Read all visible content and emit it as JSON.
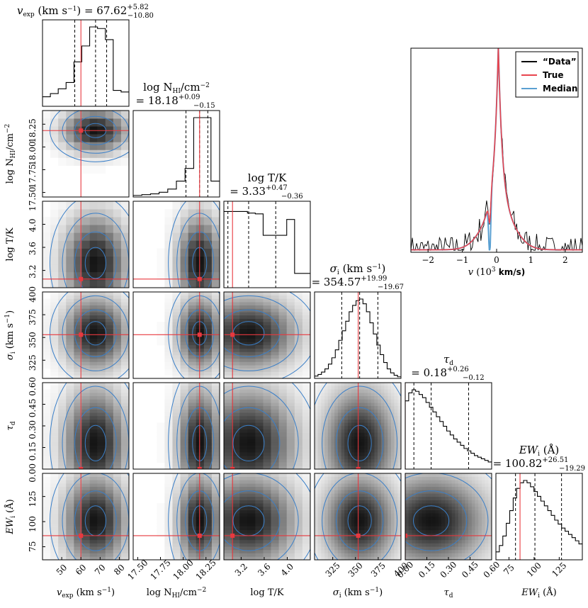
{
  "chart_data": {
    "type": "corner",
    "parameters": [
      {
        "key": "vexp",
        "label": "v_exp (km s^-1)",
        "title": "v_exp (km s^-1) = 67.62 +5.82 -10.80",
        "median": 67.62,
        "err_plus": 5.82,
        "err_minus": 10.8,
        "truth": 60.0,
        "quantiles": [
          56.8,
          67.62,
          73.4
        ],
        "range": [
          40,
          85
        ],
        "ticks": [
          50,
          60,
          70,
          80
        ],
        "hist": [
          0.12,
          0.16,
          0.22,
          0.3,
          0.56,
          0.76,
          1.0,
          0.98,
          0.84,
          0.2,
          0.18
        ]
      },
      {
        "key": "nhi",
        "label": "log N_HI/cm^-2",
        "title": "log N_HI/cm^-2 = 18.18 +0.09 -0.15",
        "median": 18.18,
        "err_plus": 0.09,
        "err_minus": 0.15,
        "truth": 18.18,
        "quantiles": [
          18.03,
          18.18,
          18.27
        ],
        "range": [
          17.45,
          18.4
        ],
        "ticks": [
          17.5,
          17.75,
          18.0,
          18.25
        ],
        "hist": [
          0.02,
          0.03,
          0.04,
          0.06,
          0.1,
          0.2,
          0.36,
          1.0,
          1.0,
          0.2
        ]
      },
      {
        "key": "logt",
        "label": "log T/K",
        "title": "log T/K = 3.33 +0.47 -0.36",
        "median": 3.33,
        "err_plus": 0.47,
        "err_minus": 0.36,
        "truth": 3.05,
        "quantiles": [
          2.97,
          3.33,
          3.8
        ],
        "range": [
          2.9,
          4.4
        ],
        "ticks": [
          3.2,
          3.6,
          4.0
        ],
        "hist": [
          0.96,
          0.96,
          0.96,
          0.94,
          0.93,
          0.66,
          0.66,
          0.66,
          0.86,
          0.18,
          0.18
        ]
      },
      {
        "key": "sigma",
        "label": "sigma_i (km s^-1)",
        "title": "sigma_i (km s^-1) = 354.57 +19.99 -19.67",
        "median": 354.57,
        "err_plus": 19.99,
        "err_minus": 19.67,
        "truth": 353.0,
        "quantiles": [
          334.9,
          354.57,
          374.6
        ],
        "range": [
          305,
          400
        ],
        "ticks": [
          325,
          350,
          375,
          400
        ],
        "hist": [
          0.03,
          0.05,
          0.08,
          0.12,
          0.18,
          0.26,
          0.36,
          0.48,
          0.6,
          0.72,
          0.84,
          0.92,
          0.98,
          1.0,
          0.94,
          0.84,
          0.7,
          0.56,
          0.42,
          0.3,
          0.2,
          0.12,
          0.07,
          0.04,
          0.02
        ]
      },
      {
        "key": "taud",
        "label": "tau_d",
        "title": "tau_d = 0.18 +0.26 -0.12",
        "median": 0.18,
        "err_plus": 0.26,
        "err_minus": 0.12,
        "truth": 0.0,
        "quantiles": [
          0.06,
          0.18,
          0.44
        ],
        "range": [
          0.0,
          0.6
        ],
        "ticks": [
          0.0,
          0.15,
          0.3,
          0.45,
          0.6
        ],
        "hist": [
          0.86,
          0.96,
          1.0,
          0.98,
          0.94,
          0.9,
          0.84,
          0.78,
          0.72,
          0.66,
          0.6,
          0.54,
          0.48,
          0.43,
          0.38,
          0.34,
          0.3,
          0.26,
          0.23,
          0.2,
          0.17,
          0.15,
          0.13,
          0.11,
          0.09
        ]
      },
      {
        "key": "ew",
        "label": "EW_i (Å)",
        "title": "EW_i (Å) = 100.82 +26.51 -19.29",
        "median": 100.82,
        "err_plus": 26.51,
        "err_minus": 19.29,
        "truth": 86.0,
        "quantiles": [
          81.5,
          100.82,
          127.3
        ],
        "range": [
          62,
          148
        ],
        "ticks": [
          75,
          100,
          125
        ],
        "hist": [
          0.1,
          0.18,
          0.3,
          0.46,
          0.62,
          0.78,
          0.9,
          0.97,
          1.0,
          0.97,
          0.92,
          0.86,
          0.8,
          0.74,
          0.68,
          0.62,
          0.56,
          0.5,
          0.45,
          0.4,
          0.36,
          0.32,
          0.28,
          0.24,
          0.2
        ]
      }
    ],
    "titles_display": [
      {
        "sym": "v",
        "sub": "exp",
        "unit": " (km s",
        "sup_unit": "−1",
        ",end": ")",
        "val": "= 67.62",
        "plus": "+5.82",
        "minus": "−10.80"
      }
    ],
    "axis_text": {
      "vexp": {
        "main": "v",
        "sub": "exp",
        "rest": " (km s",
        "sup": "−1",
        "end": ")"
      },
      "nhi": {
        "main": "log N",
        "sub": "HI",
        "rest": "/cm",
        "sup": "−2",
        "end": ""
      },
      "logt": {
        "main": "log T/K",
        "sub": "",
        "rest": "",
        "sup": "",
        "end": ""
      },
      "sigma": {
        "main": "σ",
        "sub": "i",
        "rest": " (km s",
        "sup": "−1",
        "end": ")"
      },
      "taud": {
        "main": "τ",
        "sub": "d",
        "rest": "",
        "sup": "",
        "end": ""
      },
      "ew": {
        "main": "EW",
        "sub": "i",
        "rest": " (Å)",
        "sup": "",
        "end": ""
      }
    },
    "title_values": {
      "vexp": {
        "val": " = 67.62",
        "plus": "+5.82",
        "minus": "−10.80"
      },
      "nhi": {
        "val": "= 18.18",
        "plus": "+0.09",
        "minus": "−0.15"
      },
      "logt": {
        "val": "= 3.33",
        "plus": "+0.47",
        "minus": "−0.36"
      },
      "sigma": {
        "val": "= 354.57",
        "plus": "+19.99",
        "minus": "−19.67"
      },
      "taud": {
        "val": "= 0.18",
        "plus": "+0.26",
        "minus": "−0.12"
      },
      "ew": {
        "val": "= 100.82",
        "plus": "+26.51",
        "minus": "−19.29"
      }
    },
    "tick_labels": {
      "vexp": [
        "50",
        "60",
        "70",
        "80"
      ],
      "nhi": [
        "17.50",
        "17.75",
        "18.00",
        "18.25"
      ],
      "logt": [
        "3.2",
        "3.6",
        "4.0"
      ],
      "sigma": [
        "325",
        "350",
        "375",
        "400"
      ],
      "taud": [
        "0.00",
        "0.15",
        "0.30",
        "0.45",
        "0.60"
      ],
      "ew": [
        "75",
        "100",
        "125"
      ]
    },
    "inset": {
      "type": "line",
      "xlabel": "v (10^3 km/s)",
      "xlabel_parts": {
        "v": "v",
        "unit": " (10",
        "sup": "3",
        "end": " km/s)"
      },
      "xlim": [
        -2.5,
        2.5
      ],
      "ylim": [
        0,
        1.0
      ],
      "xticks": [
        -2,
        -1,
        0,
        1,
        2
      ],
      "xtick_labels": [
        "−2",
        "−1",
        "0",
        "1",
        "2"
      ],
      "legend": [
        {
          "name": "“Data”",
          "color": "#000000"
        },
        {
          "name": "True",
          "color": "#e8444e"
        },
        {
          "name": "Median",
          "color": "#5aa0d2"
        }
      ],
      "line_center": 0.05,
      "line_peak": 0.82,
      "dip_position": -0.2
    },
    "colors": {
      "truth": "#e8393f",
      "contour": "#3a7fc8",
      "data": "#000000",
      "true_line": "#e8444e",
      "median_line": "#5aa0d2"
    }
  }
}
